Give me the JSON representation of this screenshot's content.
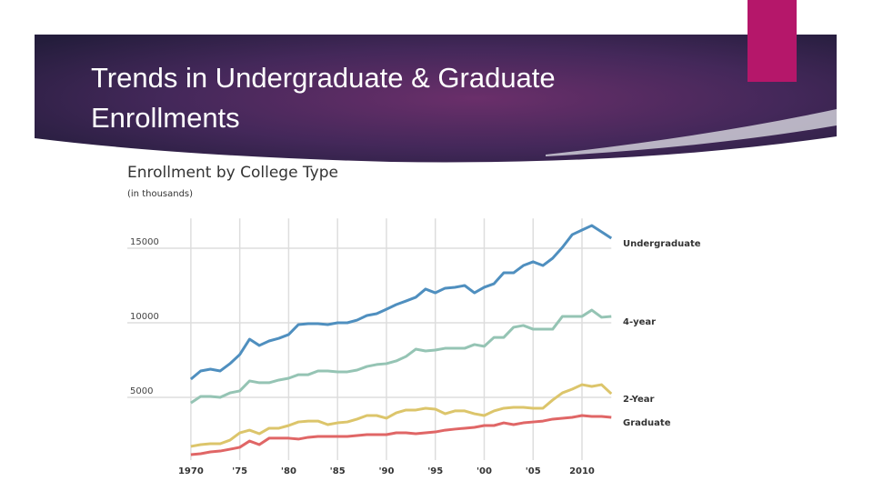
{
  "slide": {
    "title": "Trends in Undergraduate & Graduate Enrollments"
  },
  "chart_data": {
    "type": "line",
    "title": "Enrollment by College Type",
    "subtitle": "(in thousands)",
    "x": [
      1970,
      1971,
      1972,
      1973,
      1974,
      1975,
      1976,
      1977,
      1978,
      1979,
      1980,
      1981,
      1982,
      1983,
      1984,
      1985,
      1986,
      1987,
      1988,
      1989,
      1990,
      1991,
      1992,
      1993,
      1994,
      1995,
      1996,
      1997,
      1998,
      1999,
      2000,
      2001,
      2002,
      2003,
      2004,
      2005,
      2006,
      2007,
      2008,
      2009,
      2010,
      2011,
      2012,
      2013
    ],
    "series": [
      {
        "name": "Undergraduate",
        "color": "#4f8fbf",
        "values": [
          6220,
          6770,
          6890,
          6770,
          7260,
          7870,
          8900,
          8480,
          8780,
          8960,
          9210,
          9880,
          9940,
          9940,
          9880,
          10000,
          10000,
          10180,
          10490,
          10610,
          10910,
          11220,
          11460,
          11710,
          12260,
          12010,
          12320,
          12380,
          12500,
          12010,
          12380,
          12620,
          13350,
          13350,
          13840,
          14090,
          13840,
          14330,
          15060,
          15910,
          16220,
          16520,
          16100,
          15670
        ]
      },
      {
        "name": "4-year",
        "color": "#95c4b4",
        "values": [
          4630,
          5060,
          5060,
          5000,
          5300,
          5430,
          6100,
          5980,
          5980,
          6160,
          6280,
          6520,
          6520,
          6770,
          6770,
          6710,
          6710,
          6830,
          7070,
          7200,
          7260,
          7440,
          7740,
          8230,
          8110,
          8170,
          8290,
          8290,
          8290,
          8540,
          8420,
          9020,
          9020,
          9700,
          9820,
          9570,
          9570,
          9570,
          10430,
          10430,
          10430,
          10850,
          10370,
          10430
        ]
      },
      {
        "name": "2-Year",
        "color": "#dcc56b",
        "values": [
          1710,
          1830,
          1890,
          1890,
          2130,
          2620,
          2800,
          2560,
          2930,
          2930,
          3110,
          3350,
          3410,
          3410,
          3170,
          3290,
          3350,
          3540,
          3780,
          3780,
          3600,
          3960,
          4150,
          4150,
          4270,
          4210,
          3900,
          4090,
          4090,
          3900,
          3780,
          4090,
          4270,
          4330,
          4330,
          4270,
          4270,
          4820,
          5300,
          5550,
          5850,
          5730,
          5850,
          5240
        ]
      },
      {
        "name": "Graduate",
        "color": "#e06666",
        "values": [
          1160,
          1220,
          1340,
          1400,
          1520,
          1650,
          2070,
          1830,
          2260,
          2260,
          2260,
          2200,
          2320,
          2380,
          2380,
          2380,
          2380,
          2440,
          2500,
          2500,
          2500,
          2620,
          2620,
          2560,
          2620,
          2680,
          2800,
          2870,
          2930,
          2990,
          3110,
          3110,
          3290,
          3170,
          3290,
          3350,
          3410,
          3540,
          3600,
          3660,
          3780,
          3720,
          3720,
          3660
        ]
      }
    ],
    "xlim": [
      1963.5,
      2013
    ],
    "ylim": [
      0,
      17000
    ],
    "xticks": [
      1970,
      {
        "value": 1975,
        "label": "'75"
      },
      {
        "value": 1980,
        "label": "'80"
      },
      {
        "value": 1985,
        "label": "'85"
      },
      {
        "value": 1990,
        "label": "'90"
      },
      {
        "value": 1995,
        "label": "'95"
      },
      {
        "value": 2000,
        "label": "'00"
      },
      {
        "value": 2005,
        "label": "'05"
      },
      2010
    ],
    "yticks": [
      5000,
      10000,
      15000
    ],
    "grid": true
  }
}
